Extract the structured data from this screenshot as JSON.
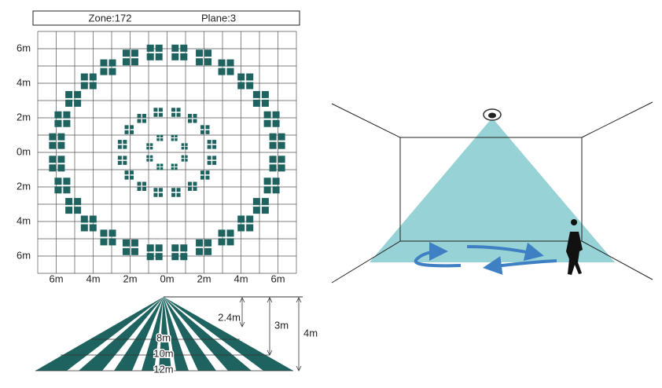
{
  "header": {
    "zone": "Zone:172",
    "plane": "Plane:3"
  },
  "top_view": {
    "y_labels": [
      "6m",
      "4m",
      "2m",
      "0m",
      "2m",
      "4m",
      "6m"
    ],
    "x_labels": [
      "6m",
      "4m",
      "2m",
      "0m",
      "2m",
      "4m",
      "6m"
    ]
  },
  "side_view": {
    "height_labels": [
      "2.4m",
      "3m",
      "4m"
    ],
    "range_labels": [
      "8m",
      "10m",
      "12m"
    ]
  }
}
